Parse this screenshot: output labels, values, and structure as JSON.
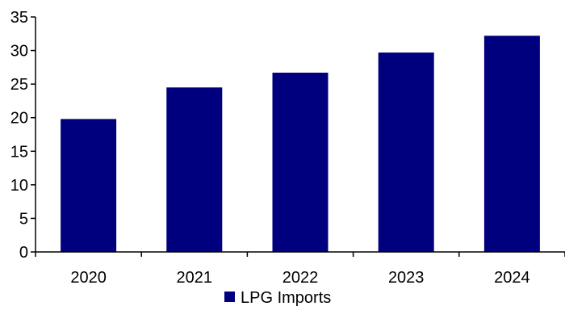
{
  "chart_data": {
    "type": "bar",
    "categories": [
      "2020",
      "2021",
      "2022",
      "2023",
      "2024"
    ],
    "series": [
      {
        "name": "LPG Imports",
        "values": [
          19.8,
          24.5,
          26.7,
          29.7,
          32.2
        ]
      }
    ],
    "ylim": [
      0,
      35
    ],
    "yticks": [
      0,
      5,
      10,
      15,
      20,
      25,
      30,
      35
    ],
    "grid": false,
    "legend": "bottom-center",
    "colors": {
      "bar": "#00007F",
      "axis": "#000000"
    }
  }
}
